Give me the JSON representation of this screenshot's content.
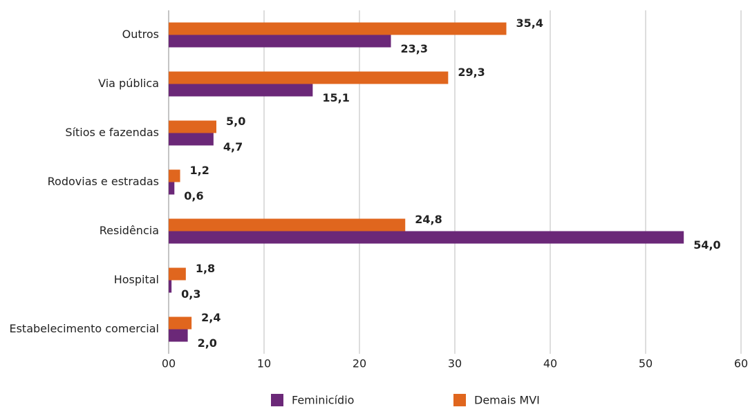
{
  "chart_data": {
    "type": "hbar",
    "categories": [
      "Outros",
      "Via pública",
      "Sítios e fazendas",
      "Rodovias e estradas",
      "Residência",
      "Hospital",
      "Estabelecimento comercial"
    ],
    "series": [
      {
        "name": "Feminicídio",
        "color": "#6b2878",
        "values": [
          23.3,
          15.1,
          4.7,
          0.6,
          54.0,
          0.3,
          2.0
        ],
        "value_labels": [
          "23,3",
          "15,1",
          "4,7",
          "0,6",
          "54,0",
          "0,3",
          "2,0"
        ]
      },
      {
        "name": "Demais MVI",
        "color": "#e0661e",
        "values": [
          35.4,
          29.3,
          5.0,
          1.2,
          24.8,
          1.8,
          2.4
        ],
        "value_labels": [
          "35,4",
          "29,3",
          "5,0",
          "1,2",
          "24,8",
          "1,8",
          "2,4"
        ]
      }
    ],
    "xlim": [
      0,
      60
    ],
    "xticks": [
      {
        "value": 0,
        "label": "00"
      },
      10,
      20,
      30,
      40,
      50,
      60
    ],
    "grid": true
  }
}
